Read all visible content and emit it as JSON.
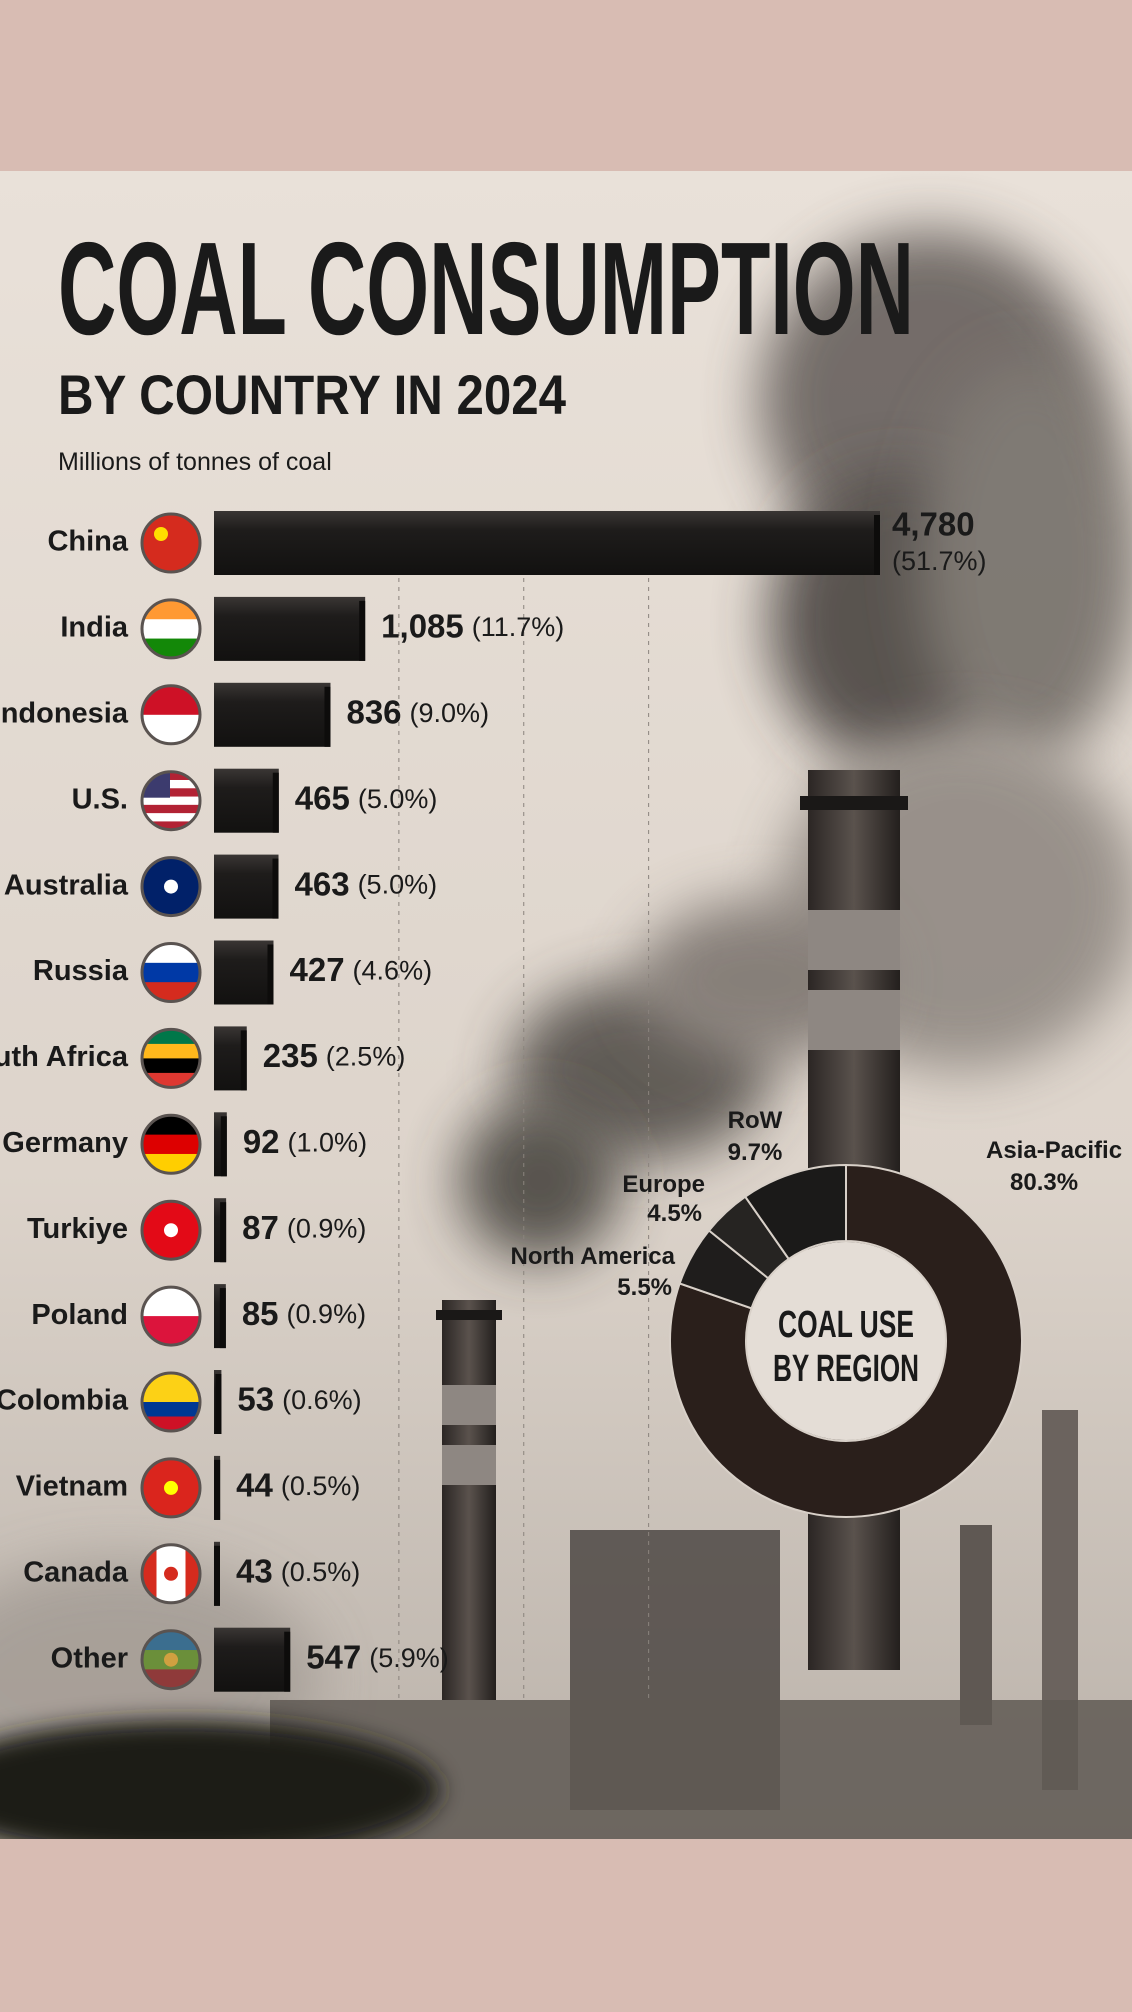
{
  "chart_data": [
    {
      "type": "hbar",
      "title": "COAL CONSUMPTION",
      "subtitle": "BY COUNTRY IN 2024",
      "unit_label": "Millions of tonnes of coal",
      "color": "#1d1b1a",
      "categories": [
        "China",
        "India",
        "Indonesia",
        "U.S.",
        "Australia",
        "Russia",
        "South Africa",
        "Germany",
        "Turkiye",
        "Poland",
        "Colombia",
        "Vietnam",
        "Canada",
        "Other"
      ],
      "values": [
        4780,
        1085,
        836,
        465,
        463,
        427,
        235,
        92,
        87,
        85,
        53,
        44,
        43,
        547
      ],
      "value_labels": [
        "4,780",
        "1,085",
        "836",
        "465",
        "463",
        "427",
        "235",
        "92",
        "87",
        "85",
        "53",
        "44",
        "43",
        "547"
      ],
      "shares": [
        51.7,
        11.7,
        9.0,
        5.0,
        5.0,
        4.6,
        2.5,
        1.0,
        0.9,
        0.9,
        0.6,
        0.5,
        0.5,
        5.9
      ],
      "share_labels": [
        "(51.7%)",
        "(11.7%)",
        "(9.0%)",
        "(5.0%)",
        "(5.0%)",
        "(4.6%)",
        "(2.5%)",
        "(1.0%)",
        "(0.9%)",
        "(0.9%)",
        "(0.6%)",
        "(0.5%)",
        "(0.5%)",
        "(5.9%)"
      ]
    },
    {
      "type": "donut",
      "title": [
        "COAL USE",
        "BY REGION"
      ],
      "categories": [
        "Asia-Pacific",
        "North America",
        "Europe",
        "RoW"
      ],
      "values": [
        80.3,
        5.5,
        4.5,
        9.7
      ],
      "value_labels": [
        "80.3%",
        "5.5%",
        "4.5%",
        "9.7%"
      ],
      "colors": [
        "#2a1f1b",
        "#1f1d1c",
        "#262422",
        "#1b1a19"
      ]
    }
  ]
}
